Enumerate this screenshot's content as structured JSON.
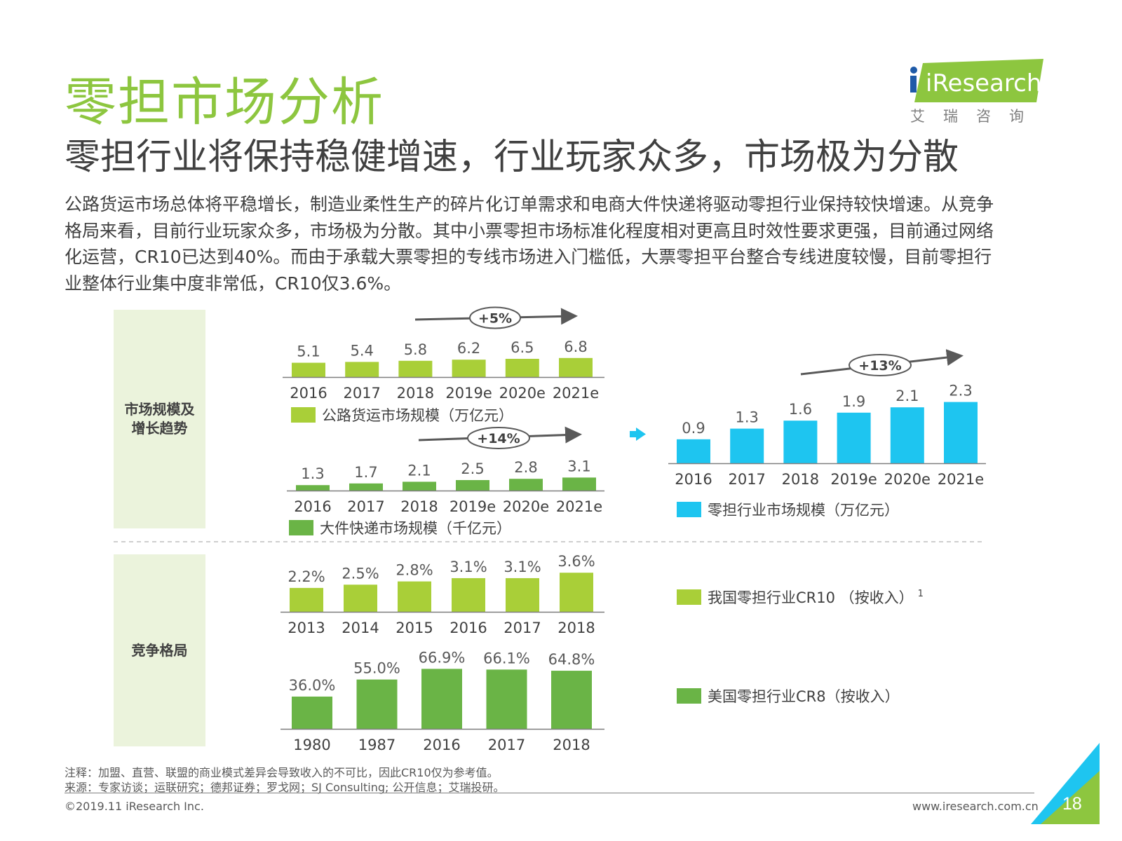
{
  "title": "零担市场分析",
  "subtitle": "零担行业将保持稳健增速，行业玩家众多，市场极为分散",
  "body_lines": [
    "公路货运市场总体将平稳增长，制造业柔性生产的碎片化订单需求和电商大件快递将驱动零担行业保持较快增速。从竞争",
    "格局来看，目前行业玩家众多，市场极为分散。其中小票零担市场标准化程度相对更高且时效性要求更强，目前通过网络",
    "化运营，CR10已达到40%。而由于承载大票零担的专线市场进入门槛低，大票零担平台整合专线进度较慢，目前零担行",
    "业整体行业集中度非常低，CR10仅3.6%。"
  ],
  "logo": {
    "brand": "iResearch",
    "sub": "艾瑞咨询"
  },
  "panels": {
    "market": "市场规模及\n增长趋势",
    "competition": "竞争格局"
  },
  "footer": {
    "note": "注释：加盟、直营、联盟的商业模式差异会导致收入的不可比，因此CR10仅为参考值。",
    "source": "来源：专家访谈；运联研究；德邦证券；罗戈网；SJ Consulting; 公开信息；艾瑞投研。",
    "copyright": "©2019.11 iResearch Inc.",
    "website": "www.iresearch.com.cn",
    "page": "18"
  },
  "colors": {
    "lime": "#a9cf38",
    "green": "#6ab446",
    "blue": "#1ec5f0",
    "title_green": "#8dc63f",
    "panel": "#ebf3dc"
  },
  "chart_data": [
    {
      "id": "road-freight",
      "type": "bar",
      "categories": [
        "2016",
        "2017",
        "2018",
        "2019e",
        "2020e",
        "2021e"
      ],
      "values": [
        5.1,
        5.4,
        5.8,
        6.2,
        6.5,
        6.8
      ],
      "value_labels": [
        "5.1",
        "5.4",
        "5.8",
        "6.2",
        "6.5",
        "6.8"
      ],
      "legend": "公路货运市场规模（万亿元）",
      "growth": "+5%",
      "color": "lime"
    },
    {
      "id": "bulky-express",
      "type": "bar",
      "categories": [
        "2016",
        "2017",
        "2018",
        "2019e",
        "2020e",
        "2021e"
      ],
      "values": [
        1.3,
        1.7,
        2.1,
        2.5,
        2.8,
        3.1
      ],
      "value_labels": [
        "1.3",
        "1.7",
        "2.1",
        "2.5",
        "2.8",
        "3.1"
      ],
      "legend": "大件快递市场规模（千亿元）",
      "growth": "+14%",
      "color": "green"
    },
    {
      "id": "ltl-market",
      "type": "bar",
      "categories": [
        "2016",
        "2017",
        "2018",
        "2019e",
        "2020e",
        "2021e"
      ],
      "values": [
        0.9,
        1.3,
        1.6,
        1.9,
        2.1,
        2.3
      ],
      "value_labels": [
        "0.9",
        "1.3",
        "1.6",
        "1.9",
        "2.1",
        "2.3"
      ],
      "legend": "零担行业市场规模（万亿元）",
      "growth": "+13%",
      "color": "blue"
    },
    {
      "id": "china-cr10",
      "type": "bar",
      "categories": [
        "2013",
        "2014",
        "2015",
        "2016",
        "2017",
        "2018"
      ],
      "values": [
        2.2,
        2.5,
        2.8,
        3.1,
        3.1,
        3.6
      ],
      "value_labels": [
        "2.2%",
        "2.5%",
        "2.8%",
        "3.1%",
        "3.1%",
        "3.6%"
      ],
      "legend": "我国零担行业CR10 （按收入）",
      "legend_sup": "1",
      "color": "lime"
    },
    {
      "id": "us-cr8",
      "type": "bar",
      "categories": [
        "1980",
        "1987",
        "2016",
        "2017",
        "2018"
      ],
      "values": [
        36.0,
        55.0,
        66.9,
        66.1,
        64.8
      ],
      "value_labels": [
        "36.0%",
        "55.0%",
        "66.9%",
        "66.1%",
        "64.8%"
      ],
      "legend": "美国零担行业CR8（按收入）",
      "color": "green"
    }
  ]
}
